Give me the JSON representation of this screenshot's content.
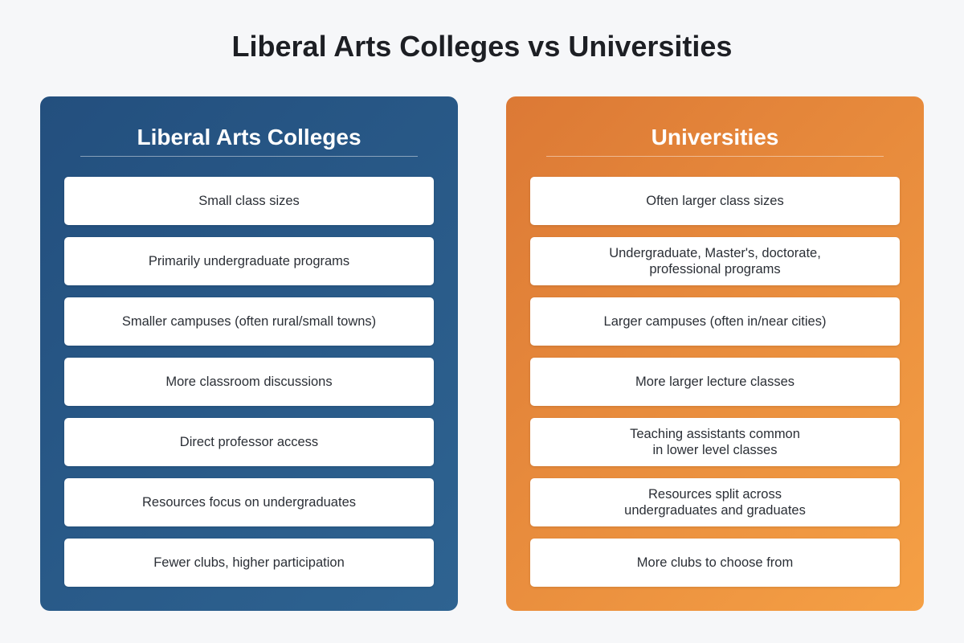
{
  "title": "Liberal Arts Colleges vs Universities",
  "colors": {
    "left_panel": "#2a5a88",
    "right_panel": "#ea8c3c",
    "background": "#f6f7f9",
    "card": "#ffffff"
  },
  "left": {
    "heading": "Liberal Arts Colleges",
    "items": [
      "Small class sizes",
      "Primarily undergraduate programs",
      "Smaller campuses (often rural/small towns)",
      "More classroom discussions",
      "Direct professor access",
      "Resources focus on undergraduates",
      "Fewer clubs, higher participation"
    ]
  },
  "right": {
    "heading": "Universities",
    "items": [
      "Often larger class sizes",
      "Undergraduate, Master's, doctorate,\nprofessional programs",
      "Larger campuses (often in/near cities)",
      "More larger lecture classes",
      "Teaching assistants common\nin lower level classes",
      "Resources split across\nundergraduates and graduates",
      "More clubs to choose from"
    ]
  }
}
